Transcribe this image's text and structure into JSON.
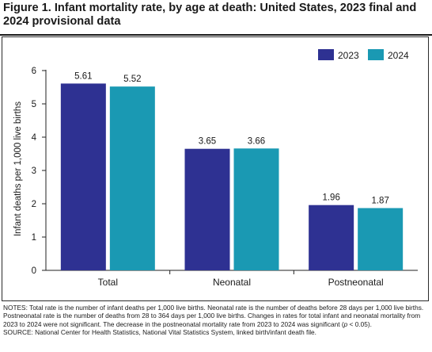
{
  "figure": {
    "title": "Figure 1. Infant mortality rate, by age at death: United States, 2023 final and 2024 provisional data"
  },
  "chart_data": {
    "type": "bar",
    "categories": [
      "Total",
      "Neonatal",
      "Postneonatal"
    ],
    "series": [
      {
        "name": "2023",
        "values": [
          5.61,
          3.65,
          1.96
        ],
        "color": "#2e3192"
      },
      {
        "name": "2024",
        "values": [
          5.52,
          3.66,
          1.87
        ],
        "color": "#1a99b3"
      }
    ],
    "value_labels": [
      [
        "5.61",
        "3.65",
        "1.96"
      ],
      [
        "5.52",
        "3.66",
        "1.87"
      ]
    ],
    "ylabel": "Infant deaths per 1,000 live births",
    "xlabel": "",
    "ylim": [
      0,
      6
    ],
    "yticks": [
      "0",
      "1",
      "2",
      "3",
      "4",
      "5",
      "6"
    ],
    "grid": false,
    "legend_position": "top-right"
  },
  "notes": {
    "text": "NOTES: Total rate is the number of infant deaths per 1,000 live births. Neonatal rate is the number of deaths before 28 days per 1,000 live births. Postneonatal rate is the number of deaths from 28 to 364 days per 1,000 live births. Changes in rates for total infant and neonatal mortality from 2023 to 2024 were not significant. The decrease in the postneonatal mortality rate from 2023 to 2024 was significant (p < 0.05).",
    "source": "SOURCE: National Center for Health Statistics, National Vital Statistics System, linked birth/infant death file."
  }
}
